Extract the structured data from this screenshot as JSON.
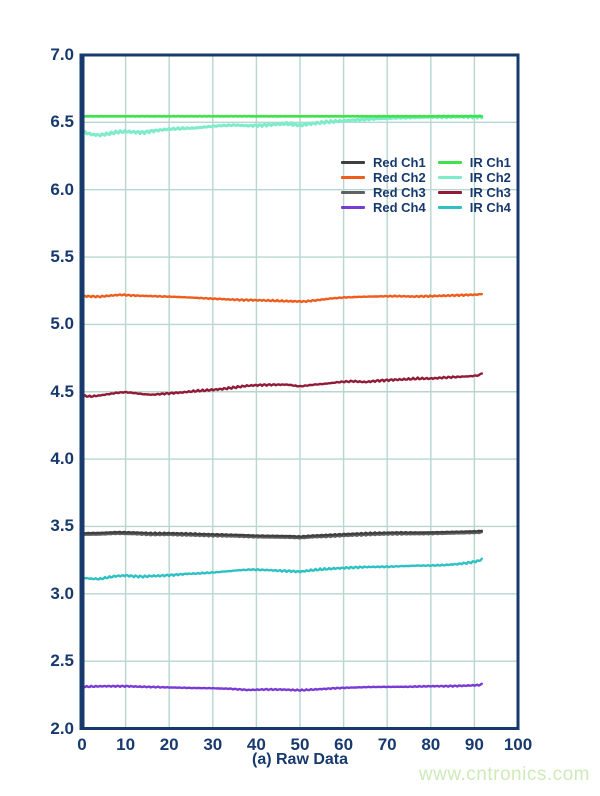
{
  "page": {
    "background": "#ffffff"
  },
  "watermark": {
    "text": "www.cntronics.com",
    "color": "#cfeab9"
  },
  "colors": {
    "axis_border": "#17396d",
    "grid": "#b7d6cf",
    "tick_text": "#17396d"
  },
  "chart_data": {
    "type": "line",
    "title": "",
    "xlabel": "(a) Raw Data",
    "ylabel": "",
    "xlim": [
      0,
      100
    ],
    "ylim": [
      2.0,
      7.0
    ],
    "grid": true,
    "legend_position": "inside-upper-right",
    "x_tick_labels": [
      "0",
      "10",
      "20",
      "30",
      "40",
      "50",
      "60",
      "70",
      "80",
      "90",
      "100"
    ],
    "x_tick_values": [
      0,
      10,
      20,
      30,
      40,
      50,
      60,
      70,
      80,
      90,
      100
    ],
    "y_tick_labels": [
      "7.0",
      "6.5",
      "6.0",
      "5.5",
      "5.0",
      "4.5",
      "4.0",
      "3.5",
      "3.0",
      "2.5",
      "2.0"
    ],
    "y_tick_values": [
      7.0,
      6.5,
      6.0,
      5.5,
      5.0,
      4.5,
      4.0,
      3.5,
      3.0,
      2.5,
      2.0
    ],
    "series": [
      {
        "name": "Red Ch1",
        "color": "#3f3f3f",
        "points": [
          [
            0,
            3.45
          ],
          [
            4,
            3.452
          ],
          [
            8,
            3.458
          ],
          [
            12,
            3.455
          ],
          [
            16,
            3.45
          ],
          [
            20,
            3.45
          ],
          [
            24,
            3.447
          ],
          [
            28,
            3.443
          ],
          [
            32,
            3.44
          ],
          [
            36,
            3.437
          ],
          [
            40,
            3.432
          ],
          [
            44,
            3.43
          ],
          [
            48,
            3.428
          ],
          [
            50,
            3.425
          ],
          [
            53,
            3.432
          ],
          [
            56,
            3.436
          ],
          [
            60,
            3.442
          ],
          [
            64,
            3.448
          ],
          [
            68,
            3.452
          ],
          [
            72,
            3.455
          ],
          [
            76,
            3.455
          ],
          [
            80,
            3.456
          ],
          [
            84,
            3.459
          ],
          [
            88,
            3.462
          ],
          [
            91,
            3.465
          ],
          [
            92,
            3.47
          ]
        ]
      },
      {
        "name": "Red Ch2",
        "color": "#ee5d1c",
        "points": [
          [
            0,
            5.21
          ],
          [
            4,
            5.206
          ],
          [
            7,
            5.215
          ],
          [
            9,
            5.22
          ],
          [
            12,
            5.214
          ],
          [
            16,
            5.21
          ],
          [
            20,
            5.206
          ],
          [
            24,
            5.201
          ],
          [
            28,
            5.194
          ],
          [
            32,
            5.188
          ],
          [
            36,
            5.182
          ],
          [
            40,
            5.18
          ],
          [
            44,
            5.176
          ],
          [
            48,
            5.172
          ],
          [
            51,
            5.17
          ],
          [
            54,
            5.18
          ],
          [
            57,
            5.192
          ],
          [
            60,
            5.2
          ],
          [
            64,
            5.205
          ],
          [
            68,
            5.208
          ],
          [
            72,
            5.21
          ],
          [
            76,
            5.207
          ],
          [
            80,
            5.21
          ],
          [
            84,
            5.214
          ],
          [
            88,
            5.218
          ],
          [
            91,
            5.222
          ],
          [
            92,
            5.23
          ]
        ]
      },
      {
        "name": "Red Ch3",
        "color": "#616161",
        "points": [
          [
            0,
            3.438
          ],
          [
            4,
            3.44
          ],
          [
            8,
            3.446
          ],
          [
            12,
            3.443
          ],
          [
            16,
            3.438
          ],
          [
            20,
            3.438
          ],
          [
            24,
            3.435
          ],
          [
            28,
            3.431
          ],
          [
            32,
            3.428
          ],
          [
            36,
            3.425
          ],
          [
            40,
            3.42
          ],
          [
            44,
            3.418
          ],
          [
            48,
            3.416
          ],
          [
            50,
            3.413
          ],
          [
            53,
            3.42
          ],
          [
            56,
            3.424
          ],
          [
            60,
            3.43
          ],
          [
            64,
            3.436
          ],
          [
            68,
            3.44
          ],
          [
            72,
            3.443
          ],
          [
            76,
            3.443
          ],
          [
            80,
            3.444
          ],
          [
            84,
            3.447
          ],
          [
            88,
            3.45
          ],
          [
            91,
            3.453
          ],
          [
            92,
            3.458
          ]
        ]
      },
      {
        "name": "Red Ch4",
        "color": "#7a3bd5",
        "points": [
          [
            0,
            2.31
          ],
          [
            5,
            2.314
          ],
          [
            10,
            2.314
          ],
          [
            15,
            2.309
          ],
          [
            20,
            2.305
          ],
          [
            25,
            2.301
          ],
          [
            30,
            2.299
          ],
          [
            34,
            2.295
          ],
          [
            38,
            2.286
          ],
          [
            42,
            2.29
          ],
          [
            46,
            2.289
          ],
          [
            50,
            2.284
          ],
          [
            54,
            2.291
          ],
          [
            58,
            2.299
          ],
          [
            62,
            2.304
          ],
          [
            66,
            2.308
          ],
          [
            70,
            2.309
          ],
          [
            75,
            2.31
          ],
          [
            80,
            2.314
          ],
          [
            85,
            2.315
          ],
          [
            89,
            2.319
          ],
          [
            91,
            2.322
          ],
          [
            92,
            2.33
          ]
        ]
      },
      {
        "name": "IR Ch1",
        "color": "#3ee24b",
        "points": [
          [
            0,
            6.545
          ],
          [
            92,
            6.545
          ]
        ]
      },
      {
        "name": "IR Ch2",
        "color": "#7fecc9",
        "points": [
          [
            0,
            6.43
          ],
          [
            2,
            6.412
          ],
          [
            4,
            6.405
          ],
          [
            6,
            6.415
          ],
          [
            8,
            6.428
          ],
          [
            10,
            6.432
          ],
          [
            12,
            6.428
          ],
          [
            14,
            6.425
          ],
          [
            16,
            6.435
          ],
          [
            18,
            6.443
          ],
          [
            20,
            6.45
          ],
          [
            23,
            6.455
          ],
          [
            26,
            6.458
          ],
          [
            29,
            6.468
          ],
          [
            32,
            6.476
          ],
          [
            35,
            6.48
          ],
          [
            38,
            6.475
          ],
          [
            41,
            6.478
          ],
          [
            44,
            6.484
          ],
          [
            47,
            6.49
          ],
          [
            50,
            6.48
          ],
          [
            53,
            6.492
          ],
          [
            56,
            6.502
          ],
          [
            60,
            6.512
          ],
          [
            64,
            6.52
          ],
          [
            68,
            6.527
          ],
          [
            72,
            6.532
          ],
          [
            76,
            6.536
          ],
          [
            80,
            6.539
          ],
          [
            84,
            6.541
          ],
          [
            88,
            6.542
          ],
          [
            92,
            6.543
          ]
        ]
      },
      {
        "name": "IR Ch3",
        "color": "#901a37",
        "points": [
          [
            0,
            4.47
          ],
          [
            2,
            4.465
          ],
          [
            4,
            4.472
          ],
          [
            6,
            4.482
          ],
          [
            8,
            4.492
          ],
          [
            10,
            4.497
          ],
          [
            12,
            4.49
          ],
          [
            14,
            4.482
          ],
          [
            16,
            4.478
          ],
          [
            18,
            4.483
          ],
          [
            20,
            4.488
          ],
          [
            23,
            4.495
          ],
          [
            26,
            4.505
          ],
          [
            29,
            4.512
          ],
          [
            32,
            4.52
          ],
          [
            35,
            4.532
          ],
          [
            38,
            4.545
          ],
          [
            41,
            4.55
          ],
          [
            44,
            4.552
          ],
          [
            47,
            4.553
          ],
          [
            50,
            4.54
          ],
          [
            53,
            4.552
          ],
          [
            56,
            4.56
          ],
          [
            59,
            4.572
          ],
          [
            62,
            4.578
          ],
          [
            65,
            4.572
          ],
          [
            68,
            4.582
          ],
          [
            71,
            4.588
          ],
          [
            74,
            4.592
          ],
          [
            77,
            4.598
          ],
          [
            80,
            4.598
          ],
          [
            83,
            4.605
          ],
          [
            86,
            4.61
          ],
          [
            89,
            4.615
          ],
          [
            91,
            4.622
          ],
          [
            92,
            4.645
          ]
        ]
      },
      {
        "name": "IR Ch4",
        "color": "#2dc1c3",
        "points": [
          [
            0,
            3.12
          ],
          [
            2,
            3.112
          ],
          [
            4,
            3.11
          ],
          [
            6,
            3.122
          ],
          [
            8,
            3.132
          ],
          [
            10,
            3.136
          ],
          [
            12,
            3.13
          ],
          [
            14,
            3.128
          ],
          [
            16,
            3.132
          ],
          [
            18,
            3.134
          ],
          [
            21,
            3.14
          ],
          [
            24,
            3.148
          ],
          [
            27,
            3.152
          ],
          [
            30,
            3.158
          ],
          [
            33,
            3.166
          ],
          [
            36,
            3.175
          ],
          [
            39,
            3.18
          ],
          [
            42,
            3.177
          ],
          [
            45,
            3.172
          ],
          [
            48,
            3.168
          ],
          [
            50,
            3.164
          ],
          [
            53,
            3.176
          ],
          [
            56,
            3.184
          ],
          [
            59,
            3.19
          ],
          [
            62,
            3.195
          ],
          [
            65,
            3.199
          ],
          [
            68,
            3.2
          ],
          [
            71,
            3.202
          ],
          [
            74,
            3.206
          ],
          [
            77,
            3.209
          ],
          [
            80,
            3.21
          ],
          [
            83,
            3.213
          ],
          [
            86,
            3.22
          ],
          [
            89,
            3.232
          ],
          [
            91,
            3.245
          ],
          [
            92,
            3.26
          ]
        ]
      }
    ]
  }
}
